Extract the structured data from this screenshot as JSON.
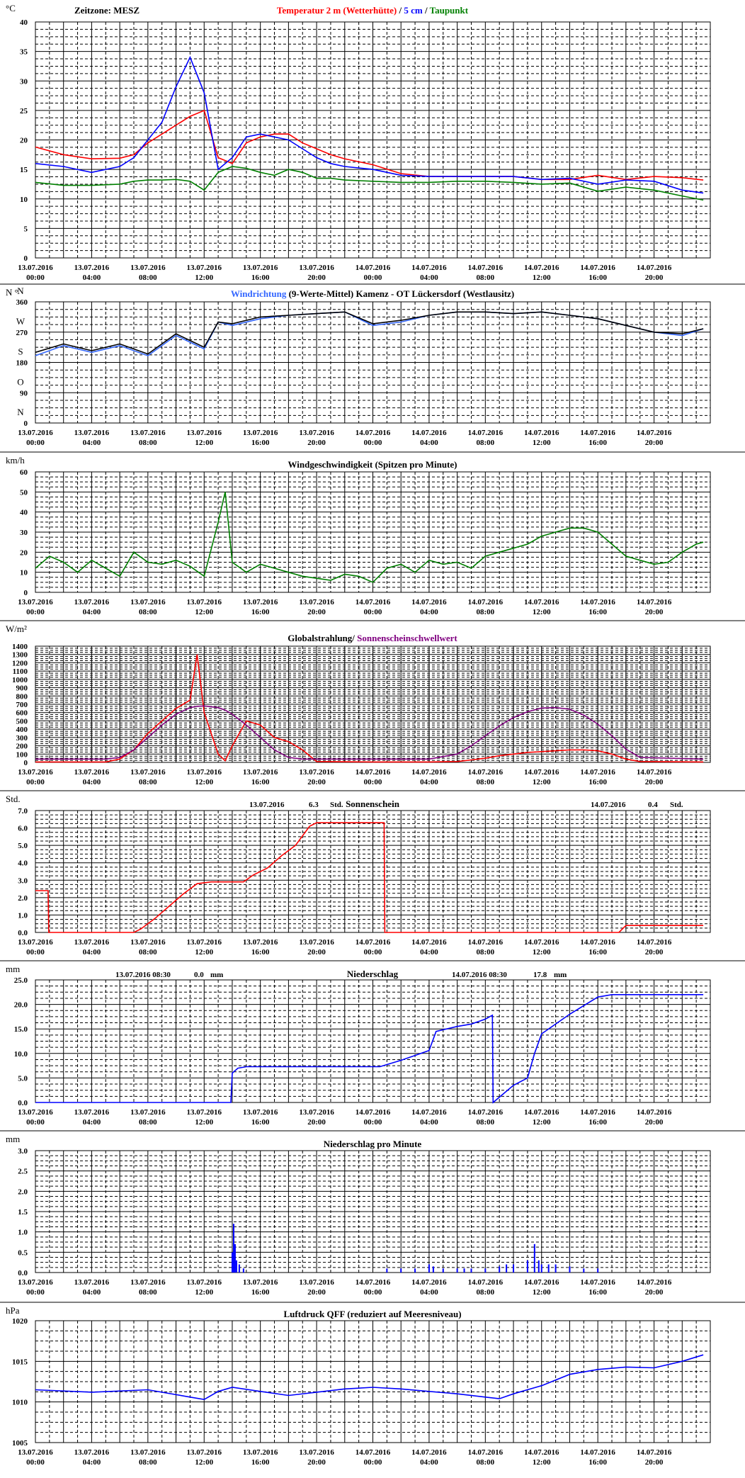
{
  "x_ticks": [
    [
      "13.07.2016",
      "00:00"
    ],
    [
      "13.07.2016",
      "04:00"
    ],
    [
      "13.07.2016",
      "08:00"
    ],
    [
      "13.07.2016",
      "12:00"
    ],
    [
      "13.07.2016",
      "16:00"
    ],
    [
      "13.07.2016",
      "20:00"
    ],
    [
      "14.07.2016",
      "00:00"
    ],
    [
      "14.07.2016",
      "04:00"
    ],
    [
      "14.07.2016",
      "08:00"
    ],
    [
      "14.07.2016",
      "12:00"
    ],
    [
      "14.07.2016",
      "16:00"
    ],
    [
      "14.07.2016",
      "20:00"
    ]
  ],
  "chart_data": [
    {
      "id": "temperature",
      "type": "line",
      "unit": "°C",
      "timezone_label": "Zeitzone: MESZ",
      "title_parts": [
        {
          "text": "Temperatur 2 m (Wetterhütte)",
          "color": "#ff0000"
        },
        {
          "text": "  /  ",
          "color": "#000000"
        },
        {
          "text": "5 cm",
          "color": "#0000ff"
        },
        {
          "text": " / ",
          "color": "#000000"
        },
        {
          "text": "Taupunkt",
          "color": "#008000"
        }
      ],
      "ylim": [
        0,
        40
      ],
      "y_ticks": [
        "0",
        "5",
        "10",
        "15",
        "20",
        "25",
        "30",
        "35",
        "40"
      ],
      "x_hours": [
        0,
        2,
        4,
        6,
        7,
        8,
        9,
        10,
        11,
        12,
        13,
        14,
        15,
        16,
        17,
        18,
        19,
        20,
        21,
        22,
        24,
        26,
        28,
        30,
        32,
        34,
        36,
        38,
        40,
        42,
        44,
        46,
        47.5
      ],
      "series": [
        {
          "name": "Temperatur 2 m (Wetterhütte)",
          "color": "#ff0000",
          "values": [
            18.8,
            17.5,
            16.8,
            16.9,
            17.5,
            19.5,
            21,
            22.5,
            24,
            25,
            17,
            16,
            19.5,
            20.5,
            21,
            21,
            19.5,
            18.5,
            17.5,
            16.8,
            15.8,
            14.3,
            13.8,
            13.8,
            13.8,
            13.8,
            13.3,
            13.3,
            14,
            13.3,
            13.8,
            13.6,
            13.2
          ]
        },
        {
          "name": "5 cm",
          "color": "#0000ff",
          "values": [
            16,
            15.5,
            14.5,
            15.5,
            17,
            20,
            23,
            29,
            34,
            28,
            15,
            17,
            20.5,
            21,
            20.5,
            20,
            18.5,
            17,
            16,
            15.5,
            15,
            14,
            13.8,
            13.8,
            13.8,
            13.8,
            13.3,
            13.5,
            12.5,
            13.2,
            13,
            11.5,
            11
          ]
        },
        {
          "name": "Taupunkt",
          "color": "#008000",
          "values": [
            12.8,
            12.3,
            12.3,
            12.5,
            13,
            13.2,
            13.2,
            13.3,
            13,
            11.5,
            14.5,
            15.5,
            15.2,
            14.5,
            14,
            15,
            14.5,
            13.5,
            13.5,
            13.2,
            13,
            12.8,
            12.8,
            13,
            13,
            12.8,
            12.5,
            12.7,
            11.3,
            12,
            11.5,
            10.5,
            9.8
          ]
        }
      ]
    },
    {
      "id": "wind_direction",
      "type": "line",
      "unit": "N °",
      "title_parts": [
        {
          "text": "Windrichtung",
          "color": "#3366ff"
        },
        {
          "text": " (9-Werte-Mittel)",
          "color": "#000000"
        },
        {
          "text": "          Kamenz - OT Lückersdorf (Westlausitz)",
          "color": "#000000"
        }
      ],
      "ylim": [
        0,
        360
      ],
      "y_ticks": [
        "0",
        "90",
        "180",
        "270",
        "360"
      ],
      "compass_labels": [
        "N",
        "O",
        "S",
        "W",
        "N"
      ],
      "x_hours": [
        0,
        2,
        4,
        6,
        8,
        10,
        11,
        12,
        13,
        14,
        16,
        18,
        20,
        22,
        24,
        26,
        28,
        30,
        32,
        34,
        36,
        38,
        40,
        42,
        44,
        46,
        47.5
      ],
      "series": [
        {
          "name": "Windrichtung",
          "color": "#3366ff",
          "values": [
            200,
            230,
            210,
            230,
            200,
            260,
            240,
            220,
            300,
            290,
            310,
            320,
            325,
            330,
            290,
            300,
            320,
            330,
            330,
            325,
            330,
            320,
            310,
            290,
            270,
            260,
            280
          ]
        },
        {
          "name": "9-Werte-Mittel",
          "color": "#000000",
          "values": [
            210,
            235,
            215,
            235,
            205,
            265,
            245,
            225,
            300,
            295,
            315,
            320,
            325,
            330,
            295,
            305,
            320,
            330,
            330,
            325,
            330,
            320,
            310,
            290,
            270,
            265,
            280
          ]
        }
      ]
    },
    {
      "id": "wind_speed",
      "type": "line",
      "unit": "km/h",
      "title": "Windgeschwindigkeit (Spitzen pro Minute)",
      "ylim": [
        0,
        60
      ],
      "y_ticks": [
        "0",
        "10",
        "20",
        "30",
        "40",
        "50",
        "60"
      ],
      "x_hours": [
        0,
        1,
        2,
        3,
        4,
        5,
        6,
        7,
        8,
        9,
        10,
        11,
        12,
        13,
        13.5,
        14,
        15,
        16,
        17,
        18,
        19,
        20,
        21,
        22,
        23,
        24,
        25,
        26,
        27,
        28,
        29,
        30,
        31,
        32,
        33,
        34,
        35,
        36,
        37,
        38,
        39,
        40,
        41,
        42,
        43,
        44,
        45,
        46,
        47,
        47.5
      ],
      "series": [
        {
          "name": "Windgeschwindigkeit",
          "color": "#008000",
          "values": [
            12,
            18,
            15,
            10,
            16,
            12,
            8,
            20,
            15,
            14,
            16,
            13,
            8,
            35,
            50,
            15,
            10,
            14,
            12,
            10,
            8,
            7,
            6,
            9,
            8,
            5,
            12,
            14,
            10,
            16,
            14,
            15,
            12,
            18,
            20,
            22,
            24,
            28,
            30,
            32,
            32,
            30,
            24,
            18,
            16,
            14,
            15,
            20,
            24,
            25
          ]
        }
      ]
    },
    {
      "id": "global_radiation",
      "type": "line",
      "unit": "W/m²",
      "title_parts": [
        {
          "text": "Globalstrahlung/ ",
          "color": "#000000"
        },
        {
          "text": "Sonnenscheinschwellwert",
          "color": "#800080"
        }
      ],
      "ylim": [
        0,
        1400
      ],
      "y_ticks": [
        "0",
        "100",
        "200",
        "300",
        "400",
        "500",
        "600",
        "700",
        "800",
        "900",
        "1000",
        "1100",
        "1200",
        "1300",
        "1400"
      ],
      "x_hours": [
        0,
        5,
        6,
        7,
        8,
        9,
        10,
        11,
        11.5,
        12,
        13,
        13.5,
        14,
        15,
        16,
        17,
        18,
        19,
        20,
        24,
        28,
        30,
        31,
        32,
        33,
        34,
        35,
        36,
        37,
        38,
        39,
        40,
        41,
        42,
        43,
        47.5
      ],
      "series": [
        {
          "name": "Globalstrahlung",
          "color": "#ff0000",
          "values": [
            5,
            5,
            40,
            150,
            350,
            500,
            650,
            750,
            1300,
            600,
            100,
            20,
            200,
            500,
            450,
            300,
            250,
            150,
            10,
            5,
            5,
            10,
            30,
            50,
            80,
            100,
            120,
            130,
            140,
            150,
            150,
            140,
            100,
            40,
            10,
            5
          ]
        },
        {
          "name": "Sonnenscheinschwellwert",
          "color": "#800080",
          "values": [
            40,
            40,
            60,
            150,
            300,
            450,
            580,
            660,
            675,
            680,
            660,
            630,
            580,
            450,
            300,
            150,
            60,
            40,
            40,
            40,
            40,
            100,
            200,
            320,
            440,
            540,
            610,
            655,
            660,
            640,
            570,
            460,
            320,
            160,
            60,
            40
          ]
        }
      ]
    },
    {
      "id": "sunshine",
      "type": "line",
      "unit": "Std.",
      "title": "Sonnenschein",
      "annotations": [
        {
          "date": "13.07.2016",
          "value": "6.3",
          "unit": "Std."
        },
        {
          "date": "14.07.2016",
          "value": "0.4",
          "unit": "Std."
        }
      ],
      "ylim": [
        0,
        7
      ],
      "y_ticks": [
        "0.0",
        "1.0",
        "2.0",
        "3.0",
        "4.0",
        "5.0",
        "6.0",
        "7.0"
      ],
      "x_hours": [
        0,
        0.9,
        0.95,
        7,
        7.5,
        8.5,
        9.5,
        10.5,
        11.5,
        12.5,
        14.8,
        15.5,
        16.5,
        17.5,
        18.5,
        19.5,
        20,
        24.8,
        24.85,
        41.5,
        42,
        47.5
      ],
      "series": [
        {
          "name": "Sonnenschein",
          "color": "#ff0000",
          "values": [
            2.4,
            2.4,
            0,
            0,
            0.2,
            0.8,
            1.5,
            2.2,
            2.8,
            2.9,
            2.9,
            3.3,
            3.7,
            4.4,
            5.0,
            6.1,
            6.3,
            6.3,
            0,
            0,
            0.4,
            0.4
          ]
        }
      ]
    },
    {
      "id": "precipitation",
      "type": "line",
      "unit": "mm",
      "title": "Niederschlag",
      "annotations": [
        {
          "date": "13.07.2016 08:30",
          "value": "0.0",
          "unit": "mm"
        },
        {
          "date": "14.07.2016 08:30",
          "value": "17.8",
          "unit": "mm"
        }
      ],
      "ylim": [
        0,
        25
      ],
      "y_ticks": [
        "0.0",
        "5.0",
        "10.0",
        "15.0",
        "20.0",
        "25.0"
      ],
      "x_hours": [
        0,
        13.9,
        14,
        14.4,
        15,
        24.5,
        26,
        27,
        28,
        28.5,
        30,
        31,
        32,
        32.5,
        32.55,
        34,
        35,
        35.5,
        36,
        38,
        40,
        41,
        47.5
      ],
      "series": [
        {
          "name": "Niederschlag",
          "color": "#0000ff",
          "values": [
            0,
            0,
            6,
            7,
            7.3,
            7.3,
            8.6,
            9.6,
            10.6,
            14.5,
            15.5,
            16,
            17,
            17.8,
            0,
            3.5,
            5,
            10,
            14,
            18,
            21.5,
            22,
            22
          ]
        }
      ]
    },
    {
      "id": "precipitation_per_minute",
      "type": "bar",
      "unit": "mm",
      "title": "Niederschlag pro Minute",
      "ylim": [
        0,
        3
      ],
      "y_ticks": [
        "0.0",
        "0.5",
        "1.0",
        "1.5",
        "2.0",
        "2.5",
        "3.0"
      ],
      "x_hours": [
        14.0,
        14.1,
        14.2,
        14.3,
        14.5,
        14.8,
        25.0,
        26.0,
        27.0,
        28.0,
        28.3,
        29.0,
        30.0,
        30.5,
        31.0,
        32.0,
        33.0,
        33.5,
        34.0,
        35.0,
        35.5,
        35.8,
        36.0,
        36.5,
        37.0,
        38.0,
        39.0,
        40.0
      ],
      "series": [
        {
          "name": "Niederschlag pro Minute",
          "color": "#0000ff",
          "values": [
            0.5,
            1.2,
            0.7,
            0.3,
            0.2,
            0.1,
            0.1,
            0.1,
            0.1,
            0.2,
            0.15,
            0.1,
            0.1,
            0.1,
            0.1,
            0.1,
            0.15,
            0.2,
            0.2,
            0.3,
            0.7,
            0.3,
            0.2,
            0.2,
            0.2,
            0.15,
            0.1,
            0.1
          ]
        }
      ]
    },
    {
      "id": "pressure",
      "type": "line",
      "unit": "hPa",
      "title": "Luftdruck QFF (reduziert auf Meeresniveau)",
      "ylim": [
        1005,
        1020
      ],
      "y_ticks": [
        "1005",
        "1010",
        "1015",
        "1020"
      ],
      "x_hours": [
        0,
        4,
        8,
        11,
        12,
        13,
        14,
        16,
        18,
        20,
        22,
        24,
        26,
        28,
        30,
        32,
        33,
        34,
        36,
        38,
        40,
        42,
        44,
        46,
        47.5
      ],
      "series": [
        {
          "name": "Luftdruck QFF",
          "color": "#0000ff",
          "values": [
            1011.5,
            1011.2,
            1011.5,
            1010.6,
            1010.3,
            1011.3,
            1011.8,
            1011.3,
            1010.8,
            1011.2,
            1011.6,
            1011.8,
            1011.6,
            1011.3,
            1011,
            1010.6,
            1010.4,
            1011,
            1012,
            1013.4,
            1014,
            1014.3,
            1014.2,
            1015,
            1015.8
          ]
        }
      ]
    }
  ]
}
